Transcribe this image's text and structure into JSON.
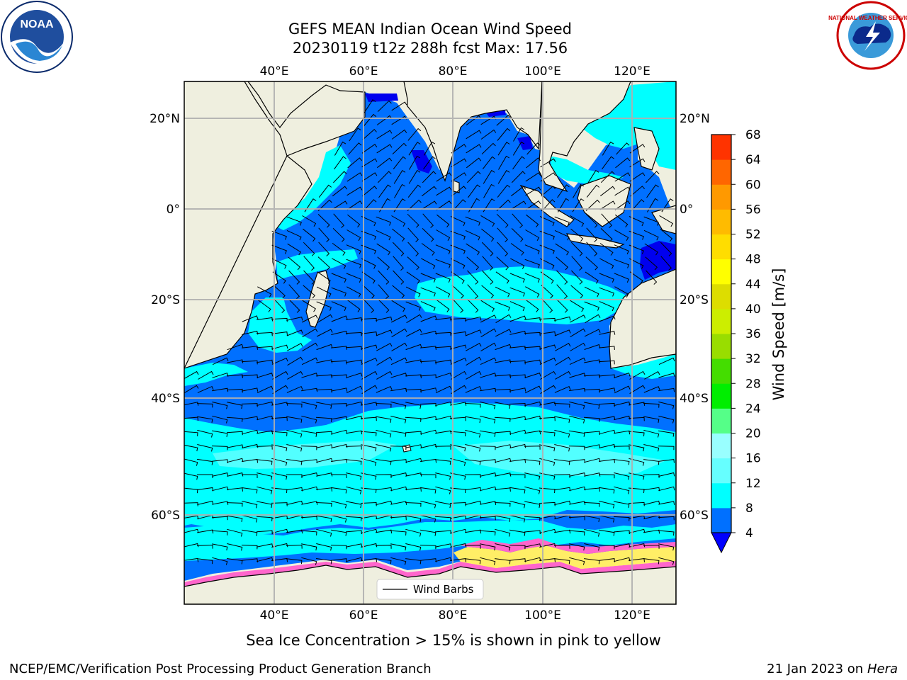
{
  "title": {
    "line1": "GEFS MEAN Indian Ocean Wind Speed",
    "line2": "20230119 t12z 288h fcst   Max: 17.56"
  },
  "map": {
    "lon_labels": [
      "40°E",
      "60°E",
      "80°E",
      "100°E",
      "120°E"
    ],
    "lat_labels": [
      "20°N",
      "0°",
      "20°S",
      "40°S",
      "60°S"
    ],
    "colors": {
      "land": "#efefdf",
      "band_4_8": "#0070ff",
      "band_8_12": "#00ffff",
      "band_12_16": "#66ffff",
      "band_lt4": "#0000ee",
      "sea_ice": "#ff66cc",
      "sea_ice_edge": "#ffee66",
      "grid": "#b0b0b0"
    }
  },
  "legend": {
    "label": "Wind Barbs"
  },
  "colorbar": {
    "label": "Wind Speed [m/s]",
    "ticks": [
      "4",
      "8",
      "12",
      "16",
      "20",
      "24",
      "28",
      "32",
      "36",
      "40",
      "44",
      "48",
      "52",
      "56",
      "60",
      "64",
      "68"
    ],
    "colors": [
      "#0070ff",
      "#00ffff",
      "#66ffff",
      "#99ffff",
      "#55ff88",
      "#00ee00",
      "#44dd00",
      "#99dd00",
      "#ccee00",
      "#dddd00",
      "#ffff00",
      "#ffdd00",
      "#ffbb00",
      "#ff9900",
      "#ff6600",
      "#ff3300"
    ],
    "extend_color": "#0000ff"
  },
  "caption": "Sea Ice Concentration > 15% is shown in pink to yellow",
  "footer": {
    "left": "NCEP/EMC/Verification Post Processing Product Generation Branch",
    "right_prefix": "21 Jan 2023 on ",
    "right_machine": "Hera"
  },
  "logos": {
    "left_text": "NOAA",
    "right_text": "NATIONAL WEATHER SERVICE"
  }
}
